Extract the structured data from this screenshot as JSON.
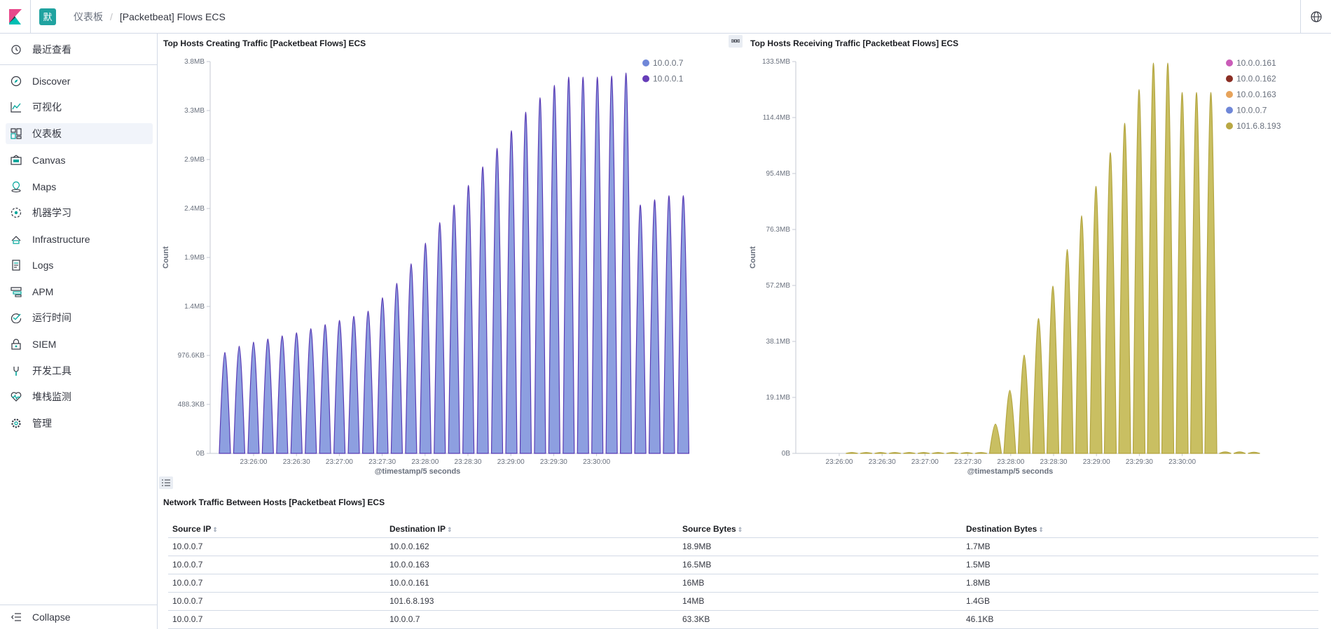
{
  "header": {
    "space_initial": "默",
    "breadcrumb_parent": "仪表板",
    "breadcrumb_current": "[Packetbeat] Flows ECS"
  },
  "sidebar": {
    "recent": "最近查看",
    "items": [
      {
        "label": "Discover",
        "icon": "compass-icon"
      },
      {
        "label": "可视化",
        "icon": "visualize-icon"
      },
      {
        "label": "仪表板",
        "icon": "dashboard-icon"
      },
      {
        "label": "Canvas",
        "icon": "canvas-icon"
      },
      {
        "label": "Maps",
        "icon": "maps-icon"
      },
      {
        "label": "机器学习",
        "icon": "ml-icon"
      },
      {
        "label": "Infrastructure",
        "icon": "infra-icon"
      },
      {
        "label": "Logs",
        "icon": "logs-icon"
      },
      {
        "label": "APM",
        "icon": "apm-icon"
      },
      {
        "label": "运行时间",
        "icon": "uptime-icon"
      },
      {
        "label": "SIEM",
        "icon": "siem-icon"
      },
      {
        "label": "开发工具",
        "icon": "devtools-icon"
      },
      {
        "label": "堆栈监测",
        "icon": "monitoring-icon"
      },
      {
        "label": "管理",
        "icon": "gear-icon"
      }
    ],
    "collapse": "Collapse"
  },
  "chart_data": [
    {
      "type": "area",
      "title": "Top Hosts Creating Traffic [Packetbeat Flows] ECS",
      "xlabel": "@timestamp/5 seconds",
      "ylabel": "Count",
      "y_ticks": [
        "0B",
        "488.3KB",
        "976.6KB",
        "1.4MB",
        "1.9MB",
        "2.4MB",
        "2.9MB",
        "3.3MB",
        "3.8MB"
      ],
      "ylim": [
        0,
        3.8
      ],
      "x_ticks": [
        "23:26:00",
        "23:26:30",
        "23:27:00",
        "23:27:30",
        "23:28:00",
        "23:28:30",
        "23:29:00",
        "23:29:30",
        "23:30:00"
      ],
      "legend": [
        {
          "name": "10.0.0.7",
          "color": "#6f87d8"
        },
        {
          "name": "10.0.0.1",
          "color": "#663db8"
        }
      ],
      "peaks_mb": [
        0.98,
        1.04,
        1.08,
        1.11,
        1.14,
        1.17,
        1.21,
        1.25,
        1.29,
        1.33,
        1.38,
        1.51,
        1.65,
        1.84,
        2.04,
        2.24,
        2.41,
        2.6,
        2.78,
        2.96,
        3.13,
        3.31,
        3.45,
        3.57,
        3.65,
        3.65,
        3.65,
        3.66,
        3.69,
        2.41,
        2.46,
        2.5,
        2.5
      ]
    },
    {
      "type": "area",
      "title": "Top Hosts Receiving Traffic [Packetbeat Flows] ECS",
      "xlabel": "@timestamp/5 seconds",
      "ylabel": "Count",
      "y_ticks": [
        "0B",
        "19.1MB",
        "38.1MB",
        "57.2MB",
        "76.3MB",
        "95.4MB",
        "114.4MB",
        "133.5MB"
      ],
      "ylim": [
        0,
        133.5
      ],
      "x_ticks": [
        "23:26:00",
        "23:26:30",
        "23:27:00",
        "23:27:30",
        "23:28:00",
        "23:28:30",
        "23:29:00",
        "23:29:30",
        "23:30:00"
      ],
      "legend": [
        {
          "name": "10.0.0.161",
          "color": "#ca5cb8"
        },
        {
          "name": "10.0.0.162",
          "color": "#8b2e24"
        },
        {
          "name": "10.0.0.163",
          "color": "#e7a35b"
        },
        {
          "name": "10.0.0.7",
          "color": "#6f87d8"
        },
        {
          "name": "101.6.8.193",
          "color": "#b9a844"
        }
      ],
      "peaks_mb": [
        0.3,
        0.3,
        0.3,
        0.3,
        0.3,
        0.3,
        0.3,
        0.3,
        0.3,
        0.3,
        10,
        21.5,
        33.5,
        46,
        57,
        69.5,
        81,
        91,
        102.5,
        112.5,
        124,
        133,
        133,
        123,
        123,
        123,
        0.5,
        0.5,
        0.4
      ]
    }
  ],
  "table": {
    "title": "Network Traffic Between Hosts [Packetbeat Flows] ECS",
    "columns": [
      "Source IP",
      "Destination IP",
      "Source Bytes",
      "Destination Bytes"
    ],
    "rows": [
      [
        "10.0.0.7",
        "10.0.0.162",
        "18.9MB",
        "1.7MB"
      ],
      [
        "10.0.0.7",
        "10.0.0.163",
        "16.5MB",
        "1.5MB"
      ],
      [
        "10.0.0.7",
        "10.0.0.161",
        "16MB",
        "1.8MB"
      ],
      [
        "10.0.0.7",
        "101.6.8.193",
        "14MB",
        "1.4GB"
      ],
      [
        "10.0.0.7",
        "10.0.0.7",
        "63.3KB",
        "46.1KB"
      ]
    ]
  }
}
